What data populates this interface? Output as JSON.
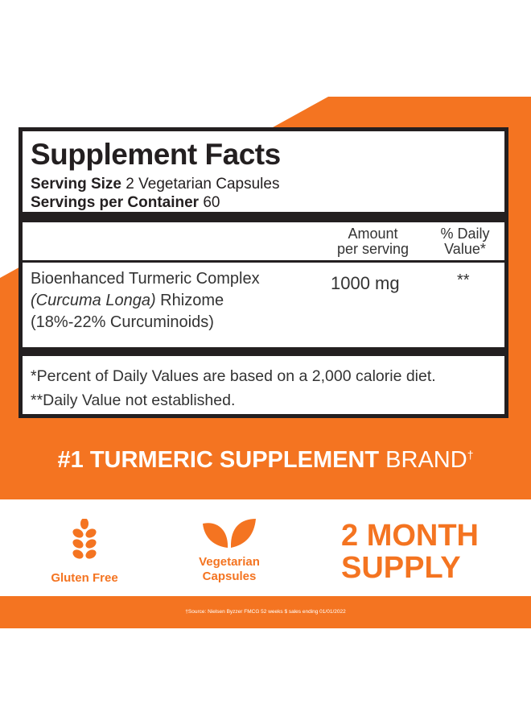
{
  "colors": {
    "brand_orange": "#f47421",
    "text_dark": "#231f20"
  },
  "facts": {
    "title": "Supplement Facts",
    "serving_size_label": "Serving Size",
    "serving_size_value": "2 Vegetarian Capsules",
    "servings_label": "Servings per Container",
    "servings_value": "60",
    "col_amount_1": "Amount",
    "col_amount_2": "per serving",
    "col_dv_1": "% Daily",
    "col_dv_2": "Value*",
    "ingredient_line1": "Bioenhanced Turmeric Complex",
    "ingredient_line2_italic": "(Curcuma Longa)",
    "ingredient_line2_rest": " Rhizome",
    "ingredient_line3": "(18%-22% Curcuminoids)",
    "amount": "1000 mg",
    "dv": "**",
    "footnote1": "*Percent of Daily Values are based on a 2,000 calorie diet.",
    "footnote2": "**Daily Value not established."
  },
  "banner": {
    "bold": "#1 TURMERIC SUPPLEMENT",
    "normal": " BRAND",
    "mark": "†"
  },
  "features": [
    {
      "icon": "wheat-icon",
      "label": "Gluten Free"
    },
    {
      "icon": "leaf-icon",
      "label_1": "Vegetarian",
      "label_2": "Capsules"
    }
  ],
  "supply": {
    "line1": "2 MONTH",
    "line2": "SUPPLY"
  },
  "source": "†Source: Nielsen Byzzer FMCG 52 weeks $ sales ending 01/01/2022"
}
